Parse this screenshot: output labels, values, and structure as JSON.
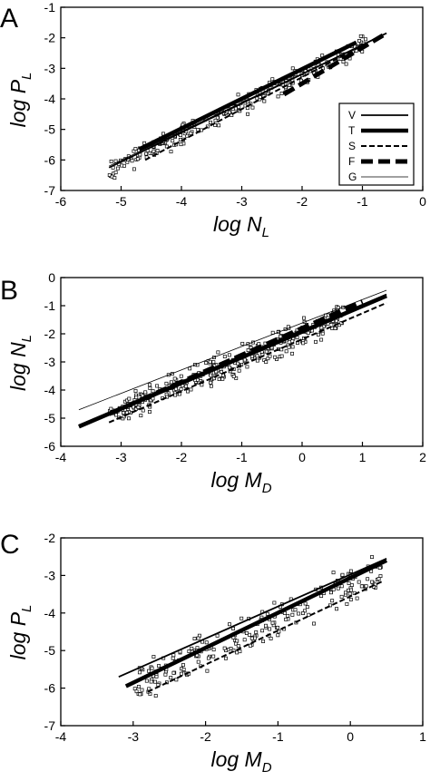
{
  "chart_data": [
    {
      "panel": "A",
      "type": "scatter",
      "ylabel": "log P",
      "ylabel_sub": "L",
      "xlabel": "log N",
      "xlabel_sub": "L",
      "xlim": [
        -6,
        0
      ],
      "ylim": [
        -7,
        -1
      ],
      "xticks": [
        -6,
        -5,
        -4,
        -3,
        -2,
        -1,
        0
      ],
      "yticks": [
        -7,
        -6,
        -5,
        -4,
        -3,
        -2,
        -1
      ],
      "grid": false,
      "legend_position": "bottom-right",
      "legend": [
        "V",
        "T",
        "S",
        "F",
        "G"
      ],
      "lines": [
        {
          "name": "V",
          "style": "solid-medium",
          "x": [
            -5.2,
            -0.6
          ],
          "y": [
            -6.25,
            -1.85
          ]
        },
        {
          "name": "T",
          "style": "solid-thick",
          "x": [
            -4.7,
            -1.1
          ],
          "y": [
            -5.65,
            -2.15
          ]
        },
        {
          "name": "S",
          "style": "dashed",
          "x": [
            -4.6,
            -1.0
          ],
          "y": [
            -6.0,
            -2.25
          ]
        },
        {
          "name": "F",
          "style": "thick-dashed",
          "x": [
            -2.3,
            -0.6
          ],
          "y": [
            -3.85,
            -1.85
          ]
        },
        {
          "name": "G",
          "style": "thin",
          "x": [
            -5.2,
            -0.6
          ],
          "y": [
            -6.2,
            -1.85
          ]
        }
      ],
      "scatter": {
        "marker": "open-square",
        "x_range": [
          -5.2,
          -0.9
        ],
        "trend": {
          "slope": 0.98,
          "intercept": -1.25,
          "spread": 0.28
        },
        "count": 260
      }
    },
    {
      "panel": "B",
      "type": "scatter",
      "ylabel": "log N",
      "ylabel_sub": "L",
      "xlabel": "log M",
      "xlabel_sub": "D",
      "xlim": [
        -4,
        2
      ],
      "ylim": [
        -6,
        0
      ],
      "xticks": [
        -4,
        -3,
        -2,
        -1,
        0,
        1,
        2
      ],
      "yticks": [
        -6,
        -5,
        -4,
        -3,
        -2,
        -1,
        0
      ],
      "grid": false,
      "lines": [
        {
          "name": "V",
          "style": "solid-medium",
          "x": [
            -3.7,
            1.4
          ],
          "y": [
            -5.25,
            -0.6
          ]
        },
        {
          "name": "T",
          "style": "solid-thick",
          "x": [
            -3.7,
            1.4
          ],
          "y": [
            -5.3,
            -0.65
          ]
        },
        {
          "name": "S",
          "style": "dashed",
          "x": [
            -3.2,
            1.4
          ],
          "y": [
            -5.15,
            -0.9
          ]
        },
        {
          "name": "F",
          "style": "thick-dashed",
          "x": [
            -3.2,
            1.0
          ],
          "y": [
            -4.85,
            -0.85
          ]
        },
        {
          "name": "G",
          "style": "thin",
          "x": [
            -3.7,
            1.4
          ],
          "y": [
            -4.7,
            -0.45
          ]
        }
      ],
      "scatter": {
        "marker": "open-square",
        "x_range": [
          -3.2,
          0.7
        ],
        "trend": {
          "slope": 0.9,
          "intercept": -2.0,
          "spread": 0.4
        },
        "count": 330
      }
    },
    {
      "panel": "C",
      "type": "scatter",
      "ylabel": "log P",
      "ylabel_sub": "L",
      "xlabel": "log M",
      "xlabel_sub": "D",
      "xlim": [
        -4,
        1
      ],
      "ylim": [
        -7,
        -2
      ],
      "xticks": [
        -4,
        -3,
        -2,
        -1,
        0,
        1
      ],
      "yticks": [
        -7,
        -6,
        -5,
        -4,
        -3,
        -2
      ],
      "grid": false,
      "lines": [
        {
          "name": "V",
          "style": "solid-medium",
          "x": [
            -3.2,
            0.5
          ],
          "y": [
            -5.7,
            -2.55
          ]
        },
        {
          "name": "T",
          "style": "solid-thick",
          "x": [
            -3.1,
            0.5
          ],
          "y": [
            -5.95,
            -2.6
          ]
        },
        {
          "name": "S",
          "style": "dashed",
          "x": [
            -2.8,
            0.45
          ],
          "y": [
            -6.1,
            -3.15
          ]
        }
      ],
      "scatter": {
        "marker": "open-square",
        "x_range": [
          -3.0,
          0.5
        ],
        "trend": {
          "slope": 0.9,
          "intercept": -3.3,
          "spread": 0.45
        },
        "count": 230
      }
    }
  ]
}
